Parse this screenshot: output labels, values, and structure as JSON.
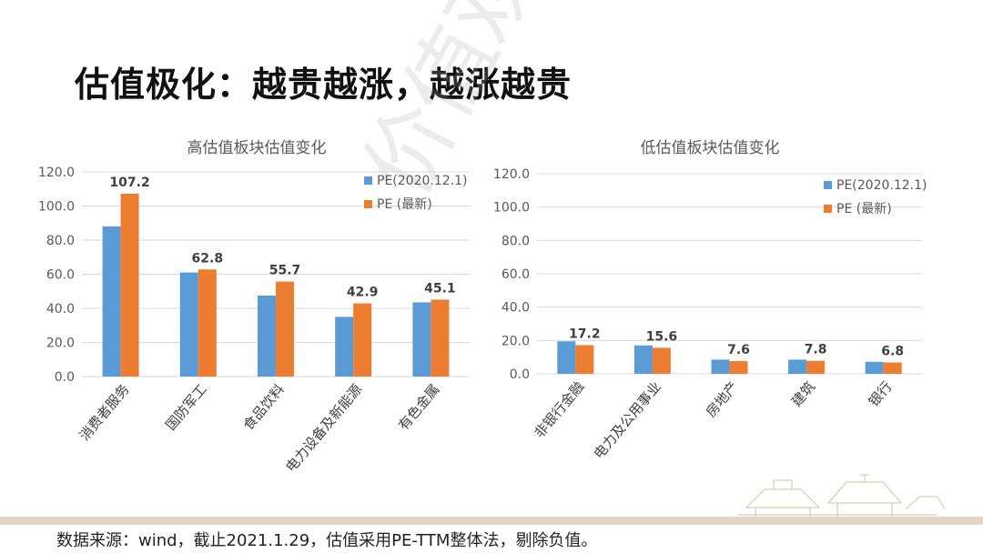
{
  "slide": {
    "title": "估值极化：越贵越涨，越涨越贵",
    "source_note": "数据来源：wind，截止2021.1.29，估值采用PE-TTM整体法，剔除负值。",
    "watermark_text": "价值观察"
  },
  "colors": {
    "series1": "#5b9bd5",
    "series2": "#ed7d31",
    "axis_text": "#595959",
    "grid": "#d9d9d9"
  },
  "chart_data": [
    {
      "type": "bar",
      "title": "高估值板块估值变化",
      "categories": [
        "消费者服务",
        "国防军工",
        "食品饮料",
        "电力设备及新能源",
        "有色金属"
      ],
      "series": [
        {
          "name": "PE(2020.12.1)",
          "values": [
            88.0,
            61.0,
            47.5,
            35.0,
            43.5
          ]
        },
        {
          "name": "PE (最新)",
          "values": [
            107.2,
            62.8,
            55.7,
            42.9,
            45.1
          ]
        }
      ],
      "data_labels": [
        "107.2",
        "62.8",
        "55.7",
        "42.9",
        "45.1"
      ],
      "y_ticks": [
        "0.0",
        "20.0",
        "40.0",
        "60.0",
        "80.0",
        "100.0",
        "120.0"
      ],
      "ylim": [
        0,
        120
      ],
      "grid": true,
      "legend_position": "top-right"
    },
    {
      "type": "bar",
      "title": "低估值板块估值变化",
      "categories": [
        "非银行金融",
        "电力及公用事业",
        "房地产",
        "建筑",
        "银行"
      ],
      "series": [
        {
          "name": "PE(2020.12.1)",
          "values": [
            19.5,
            17.0,
            8.5,
            8.5,
            7.2
          ]
        },
        {
          "name": "PE (最新)",
          "values": [
            17.2,
            15.6,
            7.6,
            7.8,
            6.8
          ]
        }
      ],
      "data_labels": [
        "17.2",
        "15.6",
        "7.6",
        "7.8",
        "6.8"
      ],
      "y_ticks": [
        "0.0",
        "20.0",
        "40.0",
        "60.0",
        "80.0",
        "100.0",
        "120.0"
      ],
      "ylim": [
        0,
        120
      ],
      "grid": true,
      "legend_position": "top-right"
    }
  ]
}
